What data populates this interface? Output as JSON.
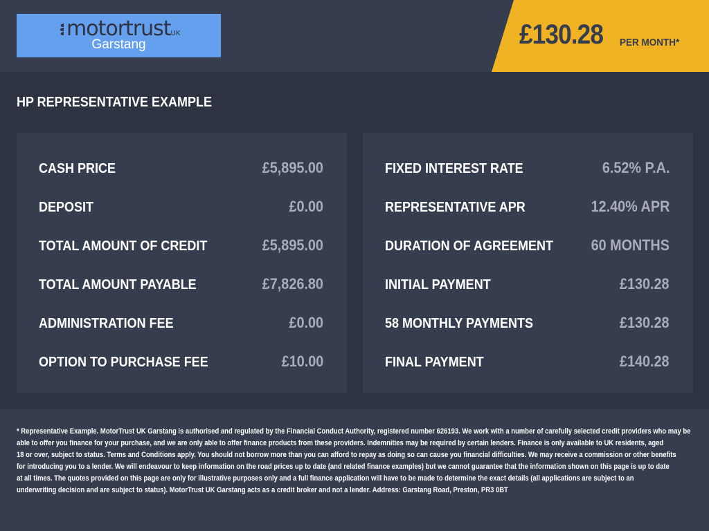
{
  "header": {
    "logo": {
      "brand": "motortrust",
      "brand_suffix": "UK",
      "location": "Garstang"
    },
    "price": "£130.28",
    "price_suffix": "PER MONTH*",
    "colors": {
      "accent": "#f0b323",
      "logo_bg": "#64a0ee",
      "header_bg": "#363d4f"
    }
  },
  "section_title": "HP REPRESENTATIVE EXAMPLE",
  "left_panel": [
    {
      "label": "CASH PRICE",
      "value": "£5,895.00"
    },
    {
      "label": "DEPOSIT",
      "value": "£0.00"
    },
    {
      "label": "TOTAL AMOUNT OF CREDIT",
      "value": "£5,895.00"
    },
    {
      "label": "TOTAL AMOUNT PAYABLE",
      "value": "£7,826.80"
    },
    {
      "label": "ADMINISTRATION FEE",
      "value": "£0.00"
    },
    {
      "label": "OPTION TO PURCHASE FEE",
      "value": "£10.00"
    }
  ],
  "right_panel": [
    {
      "label": "FIXED INTEREST RATE",
      "value": "6.52% P.A."
    },
    {
      "label": "REPRESENTATIVE APR",
      "value": "12.40% APR"
    },
    {
      "label": "DURATION OF AGREEMENT",
      "value": "60 MONTHS"
    },
    {
      "label": "INITIAL PAYMENT",
      "value": "£130.28"
    },
    {
      "label": "58 MONTHLY PAYMENTS",
      "value": "£130.28"
    },
    {
      "label": "FINAL PAYMENT",
      "value": "£140.28"
    }
  ],
  "footer": {
    "lines": [
      "* Representative Example. MotorTrust UK Garstang is authorised and regulated by the Financial Conduct Authority, registered number 626193. We work with a number of carefully selected credit providers who may be",
      "able to offer you finance for your purchase, and we are only able to offer finance products from these providers. Indemnities may be required by certain lenders. Finance is only available to UK residents, aged",
      "18 or over, subject to status. Terms and Conditions apply. You should not borrow more than you can afford to repay as doing so can cause you financial difficulties. We may receive a commission or other benefits",
      "for introducing you to a lender. We will endeavour to keep information on the road prices up to date (and related finance examples) but we cannot guarantee that the information shown on this page is up to date",
      "at all times. The quotes provided on this page are only for illustrative purposes only and a full finance application will have to be made to determine the exact details (all applications are subject to an",
      "underwriting decision and are subject to status). MotorTrust UK Garstang acts as a credit broker and not a lender. Address: Garstang Road, Preston, PR3 0BT"
    ]
  }
}
